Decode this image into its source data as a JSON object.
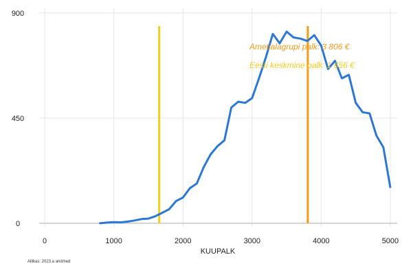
{
  "chart_data": {
    "type": "line",
    "title": "",
    "xlabel": "KUUPALK",
    "ylabel": "",
    "xlim": [
      -200,
      5100
    ],
    "ylim": [
      -15,
      920
    ],
    "x_ticks": [
      0,
      1000,
      2000,
      3000,
      4000,
      5000
    ],
    "y_ticks": [
      0,
      450,
      900
    ],
    "grid": true,
    "series": [
      {
        "color": "#2a77d4",
        "x": [
          800,
          900,
          1000,
          1100,
          1200,
          1300,
          1400,
          1500,
          1600,
          1700,
          1800,
          1900,
          2000,
          2100,
          2200,
          2300,
          2400,
          2500,
          2600,
          2700,
          2800,
          2900,
          3000,
          3100,
          3200,
          3300,
          3400,
          3500,
          3600,
          3700,
          3800,
          3900,
          4000,
          4100,
          4200,
          4300,
          4400,
          4500,
          4600,
          4700,
          4800,
          4900,
          5000
        ],
        "y": [
          0,
          3,
          5,
          4,
          7,
          12,
          18,
          20,
          30,
          45,
          60,
          95,
          110,
          150,
          170,
          240,
          295,
          330,
          355,
          495,
          520,
          515,
          535,
          620,
          710,
          810,
          770,
          820,
          795,
          790,
          780,
          805,
          760,
          660,
          695,
          620,
          635,
          515,
          475,
          470,
          375,
          325,
          155
        ]
      }
    ],
    "reference_lines": [
      {
        "x": 1656,
        "color": "#f7cc1b",
        "label": "Eesti keskmine palk: 1 656 €"
      },
      {
        "x": 3806,
        "color": "#f59a1b",
        "label": "Ametialagrupi palk: 3 806 €"
      }
    ],
    "source": "Allikas: 2023.a andmed"
  }
}
